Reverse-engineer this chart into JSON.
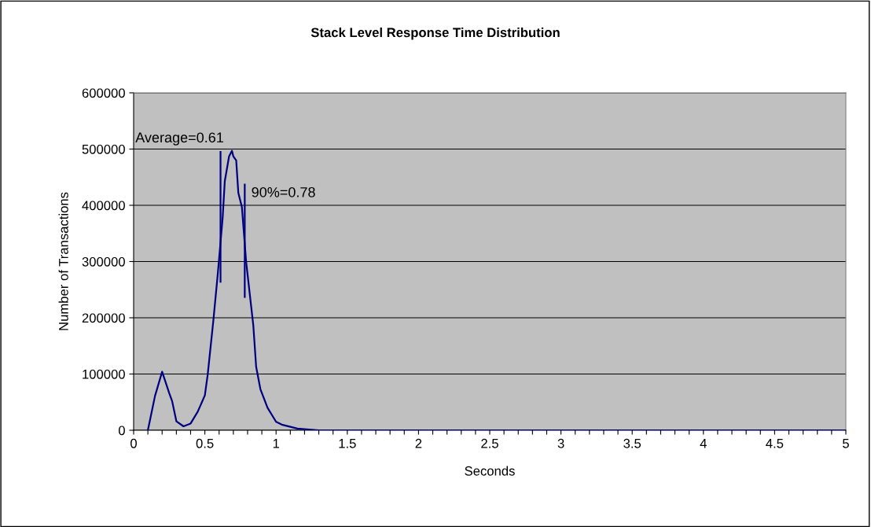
{
  "chart_data": {
    "type": "line",
    "title": "Stack Level Response Time Distribution",
    "xlabel": "Seconds",
    "ylabel": "Number of Transactions",
    "series": [
      {
        "color": "#000080",
        "x": [
          0.1,
          0.15,
          0.2,
          0.25,
          0.27,
          0.3,
          0.35,
          0.4,
          0.45,
          0.5,
          0.52,
          0.56,
          0.59,
          0.625,
          0.64,
          0.67,
          0.69,
          0.7,
          0.72,
          0.735,
          0.76,
          0.79,
          0.84,
          0.86,
          0.89,
          0.94,
          1.0,
          1.04,
          1.15,
          1.2,
          1.3,
          2,
          3,
          4,
          5
        ],
        "values": [
          0,
          61000,
          104000,
          66000,
          52000,
          16000,
          7000,
          12000,
          33000,
          62000,
          99000,
          196000,
          276000,
          378000,
          443000,
          487000,
          497000,
          487000,
          480000,
          422000,
          397000,
          299000,
          187000,
          113000,
          73000,
          40000,
          15000,
          10000,
          3000,
          2000,
          0,
          0,
          0,
          0,
          0
        ]
      }
    ],
    "xlim": [
      0,
      5
    ],
    "xticks": [
      0,
      {
        "value": 0.1,
        "label": null
      },
      {
        "value": 0.2,
        "label": null
      },
      {
        "value": 0.3,
        "label": null
      },
      {
        "value": 0.4,
        "label": null
      },
      0.5,
      {
        "value": 0.6,
        "label": null
      },
      {
        "value": 0.7,
        "label": null
      },
      {
        "value": 0.8,
        "label": null
      },
      {
        "value": 0.9,
        "label": null
      },
      1,
      {
        "value": 1.1,
        "label": null
      },
      {
        "value": 1.2,
        "label": null
      },
      {
        "value": 1.3,
        "label": null
      },
      {
        "value": 1.4,
        "label": null
      },
      1.5,
      {
        "value": 1.6,
        "label": null
      },
      {
        "value": 1.7,
        "label": null
      },
      {
        "value": 1.8,
        "label": null
      },
      {
        "value": 1.9,
        "label": null
      },
      2,
      {
        "value": 2.1,
        "label": null
      },
      {
        "value": 2.2,
        "label": null
      },
      {
        "value": 2.3,
        "label": null
      },
      {
        "value": 2.4,
        "label": null
      },
      2.5,
      {
        "value": 2.6,
        "label": null
      },
      {
        "value": 2.7,
        "label": null
      },
      {
        "value": 2.8,
        "label": null
      },
      {
        "value": 2.9,
        "label": null
      },
      3,
      {
        "value": 3.1,
        "label": null
      },
      {
        "value": 3.2,
        "label": null
      },
      {
        "value": 3.3,
        "label": null
      },
      {
        "value": 3.4,
        "label": null
      },
      3.5,
      {
        "value": 3.6,
        "label": null
      },
      {
        "value": 3.7,
        "label": null
      },
      {
        "value": 3.8,
        "label": null
      },
      {
        "value": 3.9,
        "label": null
      },
      4,
      {
        "value": 4.1,
        "label": null
      },
      {
        "value": 4.2,
        "label": null
      },
      {
        "value": 4.3,
        "label": null
      },
      {
        "value": 4.4,
        "label": null
      },
      4.5,
      {
        "value": 4.6,
        "label": null
      },
      {
        "value": 4.7,
        "label": null
      },
      {
        "value": 4.8,
        "label": null
      },
      {
        "value": 4.9,
        "label": null
      },
      5
    ],
    "ylim": [
      0,
      600000
    ],
    "yticks": [
      0,
      100000,
      200000,
      300000,
      400000,
      500000,
      600000
    ],
    "grid": "y",
    "ref_lines": [
      {
        "axis": "x",
        "value": 0.61,
        "label": "Average=0.61",
        "color": "#000080"
      },
      {
        "axis": "x",
        "value": 0.78,
        "label": "90%=0.78",
        "color": "#000080"
      }
    ]
  }
}
